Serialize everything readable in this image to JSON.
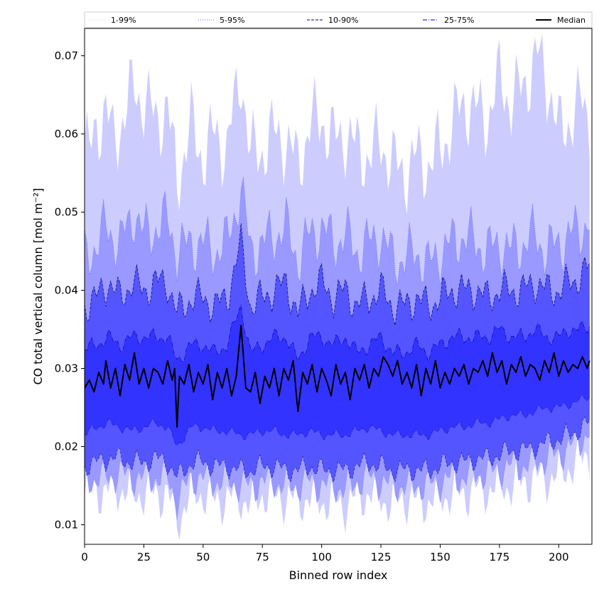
{
  "chart_data": {
    "type": "area",
    "xlabel": "Binned row index",
    "ylabel": "CO total vertical column [mol m⁻²]",
    "xlim": [
      0,
      214
    ],
    "ylim": [
      0.0075,
      0.0735
    ],
    "x_ticks": [
      0,
      25,
      50,
      75,
      100,
      125,
      150,
      175,
      200
    ],
    "y_ticks": [
      0.01,
      0.02,
      0.03,
      0.04,
      0.05,
      0.06,
      0.07
    ],
    "x_tick_labels": [
      "0",
      "25",
      "50",
      "75",
      "100",
      "125",
      "150",
      "175",
      "200"
    ],
    "y_tick_labels": [
      "0.01",
      "0.02",
      "0.03",
      "0.04",
      "0.05",
      "0.06",
      "0.07"
    ],
    "grid": false,
    "legend_position": "top",
    "x_start": 0,
    "x_end": 213,
    "series": [
      {
        "name": "1-99%",
        "fill_color": "#ccccff",
        "line_color": "#d8d8ff",
        "line_style": "dotted",
        "keypoints_x": [
          0,
          2,
          5,
          9,
          12,
          15,
          21,
          25,
          30,
          35,
          39,
          45,
          50,
          55,
          60,
          66,
          70,
          75,
          80,
          85,
          90,
          95,
          100,
          105,
          110,
          115,
          120,
          125,
          130,
          135,
          140,
          145,
          150,
          155,
          160,
          165,
          170,
          175,
          180,
          185,
          191,
          196,
          200,
          205,
          210,
          213
        ],
        "keypoints_upper": [
          0.059,
          0.057,
          0.061,
          0.063,
          0.059,
          0.061,
          0.066,
          0.064,
          0.062,
          0.063,
          0.054,
          0.061,
          0.057,
          0.06,
          0.058,
          0.068,
          0.057,
          0.058,
          0.06,
          0.059,
          0.056,
          0.061,
          0.062,
          0.059,
          0.06,
          0.058,
          0.057,
          0.059,
          0.056,
          0.055,
          0.057,
          0.056,
          0.058,
          0.061,
          0.064,
          0.063,
          0.062,
          0.067,
          0.064,
          0.066,
          0.07,
          0.066,
          0.06,
          0.062,
          0.064,
          0.062
        ],
        "keypoints_lower": [
          0.0135,
          0.014,
          0.0145,
          0.014,
          0.015,
          0.0145,
          0.014,
          0.014,
          0.014,
          0.014,
          0.0105,
          0.014,
          0.014,
          0.013,
          0.0135,
          0.0135,
          0.0125,
          0.014,
          0.0135,
          0.0135,
          0.013,
          0.0135,
          0.013,
          0.013,
          0.0125,
          0.0135,
          0.014,
          0.0135,
          0.0125,
          0.0135,
          0.013,
          0.013,
          0.0135,
          0.014,
          0.014,
          0.0145,
          0.0145,
          0.015,
          0.015,
          0.0155,
          0.016,
          0.016,
          0.0165,
          0.0175,
          0.0185,
          0.019
        ]
      },
      {
        "name": "5-95%",
        "fill_color": "#9999ff",
        "line_color": "#6060ff",
        "line_style": "dotted",
        "keypoints_x": [
          0,
          5,
          9,
          15,
          21,
          25,
          30,
          35,
          39,
          45,
          50,
          55,
          60,
          66,
          70,
          75,
          80,
          85,
          90,
          95,
          100,
          105,
          110,
          115,
          120,
          125,
          130,
          135,
          140,
          145,
          150,
          155,
          160,
          165,
          170,
          175,
          180,
          185,
          190,
          195,
          200,
          205,
          210,
          213
        ],
        "keypoints_upper": [
          0.044,
          0.046,
          0.048,
          0.046,
          0.05,
          0.047,
          0.048,
          0.049,
          0.045,
          0.046,
          0.046,
          0.045,
          0.046,
          0.053,
          0.045,
          0.046,
          0.047,
          0.048,
          0.044,
          0.047,
          0.048,
          0.046,
          0.047,
          0.045,
          0.046,
          0.047,
          0.044,
          0.044,
          0.045,
          0.043,
          0.045,
          0.046,
          0.047,
          0.046,
          0.045,
          0.046,
          0.045,
          0.046,
          0.047,
          0.045,
          0.046,
          0.047,
          0.048,
          0.049
        ],
        "keypoints_lower": [
          0.0155,
          0.016,
          0.016,
          0.0165,
          0.016,
          0.016,
          0.016,
          0.016,
          0.013,
          0.016,
          0.016,
          0.0155,
          0.0155,
          0.015,
          0.015,
          0.0155,
          0.0155,
          0.015,
          0.015,
          0.0155,
          0.015,
          0.015,
          0.0145,
          0.0155,
          0.016,
          0.0155,
          0.015,
          0.015,
          0.015,
          0.015,
          0.0155,
          0.016,
          0.016,
          0.0165,
          0.0165,
          0.017,
          0.0175,
          0.0175,
          0.018,
          0.0185,
          0.019,
          0.02,
          0.021,
          0.022
        ]
      },
      {
        "name": "10-90%",
        "fill_color": "#5555ff",
        "line_color": "#000066",
        "line_style": "dashed",
        "keypoints_x": [
          0,
          5,
          10,
          15,
          20,
          25,
          30,
          35,
          39,
          45,
          50,
          55,
          60,
          66,
          70,
          75,
          80,
          85,
          90,
          95,
          100,
          105,
          110,
          115,
          120,
          125,
          130,
          135,
          140,
          145,
          150,
          155,
          160,
          165,
          170,
          175,
          180,
          185,
          190,
          195,
          200,
          205,
          210,
          213
        ],
        "keypoints_upper": [
          0.038,
          0.039,
          0.041,
          0.039,
          0.041,
          0.04,
          0.041,
          0.041,
          0.037,
          0.039,
          0.039,
          0.038,
          0.039,
          0.046,
          0.038,
          0.039,
          0.04,
          0.041,
          0.037,
          0.04,
          0.041,
          0.039,
          0.04,
          0.038,
          0.039,
          0.04,
          0.038,
          0.038,
          0.039,
          0.038,
          0.039,
          0.04,
          0.04,
          0.04,
          0.039,
          0.04,
          0.04,
          0.04,
          0.041,
          0.04,
          0.04,
          0.041,
          0.042,
          0.043
        ],
        "keypoints_lower": [
          0.0175,
          0.018,
          0.0185,
          0.0185,
          0.018,
          0.018,
          0.0185,
          0.018,
          0.016,
          0.018,
          0.018,
          0.0175,
          0.0175,
          0.017,
          0.017,
          0.0175,
          0.0175,
          0.017,
          0.017,
          0.0175,
          0.017,
          0.017,
          0.017,
          0.0175,
          0.018,
          0.0175,
          0.017,
          0.017,
          0.017,
          0.017,
          0.0175,
          0.018,
          0.018,
          0.0185,
          0.0185,
          0.019,
          0.0195,
          0.0195,
          0.02,
          0.0205,
          0.021,
          0.0215,
          0.0225,
          0.023
        ]
      },
      {
        "name": "25-75%",
        "fill_color": "#3333ff",
        "line_color": "#0000aa",
        "line_style": "dashdot",
        "keypoints_x": [
          0,
          5,
          10,
          15,
          20,
          25,
          30,
          35,
          39,
          45,
          50,
          55,
          60,
          66,
          70,
          75,
          80,
          85,
          90,
          95,
          100,
          105,
          110,
          115,
          120,
          125,
          130,
          135,
          140,
          145,
          150,
          155,
          160,
          165,
          170,
          175,
          180,
          185,
          190,
          195,
          200,
          205,
          210,
          213
        ],
        "keypoints_upper": [
          0.0325,
          0.033,
          0.034,
          0.033,
          0.034,
          0.034,
          0.034,
          0.034,
          0.031,
          0.033,
          0.033,
          0.032,
          0.033,
          0.038,
          0.032,
          0.033,
          0.034,
          0.034,
          0.031,
          0.034,
          0.034,
          0.033,
          0.034,
          0.032,
          0.033,
          0.034,
          0.032,
          0.032,
          0.033,
          0.032,
          0.033,
          0.034,
          0.034,
          0.034,
          0.034,
          0.035,
          0.034,
          0.034,
          0.035,
          0.034,
          0.034,
          0.035,
          0.035,
          0.0355
        ],
        "keypoints_lower": [
          0.0215,
          0.0225,
          0.023,
          0.0225,
          0.022,
          0.0225,
          0.023,
          0.0225,
          0.02,
          0.0225,
          0.0225,
          0.022,
          0.022,
          0.0215,
          0.0215,
          0.022,
          0.022,
          0.0215,
          0.0215,
          0.022,
          0.0215,
          0.0215,
          0.0215,
          0.022,
          0.0225,
          0.022,
          0.0215,
          0.0215,
          0.0215,
          0.0215,
          0.022,
          0.0225,
          0.0225,
          0.023,
          0.023,
          0.0235,
          0.024,
          0.024,
          0.0245,
          0.025,
          0.025,
          0.0255,
          0.026,
          0.0265
        ]
      },
      {
        "name": "Median",
        "line_color": "#000000",
        "line_style": "solid",
        "x": [
          0,
          2,
          4,
          6,
          8,
          9,
          11,
          13,
          15,
          17,
          19,
          21,
          23,
          25,
          27,
          29,
          31,
          33,
          35,
          37,
          38,
          39,
          40,
          42,
          44,
          46,
          48,
          50,
          52,
          54,
          56,
          58,
          60,
          62,
          64,
          66,
          68,
          70,
          72,
          74,
          76,
          78,
          80,
          82,
          84,
          86,
          88,
          90,
          92,
          94,
          96,
          98,
          100,
          102,
          104,
          106,
          108,
          110,
          112,
          114,
          116,
          118,
          120,
          122,
          124,
          126,
          128,
          130,
          132,
          134,
          136,
          138,
          140,
          142,
          144,
          146,
          148,
          150,
          152,
          154,
          156,
          158,
          160,
          162,
          164,
          166,
          168,
          170,
          172,
          174,
          176,
          178,
          180,
          182,
          184,
          186,
          188,
          190,
          192,
          194,
          196,
          198,
          200,
          202,
          204,
          206,
          208,
          210,
          212,
          213
        ],
        "values": [
          0.0275,
          0.0285,
          0.027,
          0.0295,
          0.028,
          0.031,
          0.0275,
          0.03,
          0.0265,
          0.0305,
          0.0285,
          0.032,
          0.028,
          0.03,
          0.0275,
          0.03,
          0.0295,
          0.028,
          0.031,
          0.0285,
          0.03,
          0.0225,
          0.029,
          0.028,
          0.0305,
          0.027,
          0.0295,
          0.028,
          0.0305,
          0.026,
          0.0295,
          0.0275,
          0.03,
          0.0265,
          0.029,
          0.0355,
          0.0275,
          0.027,
          0.0295,
          0.0255,
          0.029,
          0.0275,
          0.03,
          0.0265,
          0.03,
          0.0285,
          0.031,
          0.0245,
          0.0295,
          0.028,
          0.0305,
          0.027,
          0.03,
          0.0285,
          0.0265,
          0.0305,
          0.028,
          0.0295,
          0.026,
          0.03,
          0.0285,
          0.0305,
          0.0275,
          0.03,
          0.029,
          0.0315,
          0.0305,
          0.029,
          0.031,
          0.028,
          0.0295,
          0.0275,
          0.0305,
          0.0265,
          0.03,
          0.028,
          0.031,
          0.0275,
          0.0295,
          0.028,
          0.03,
          0.029,
          0.0305,
          0.028,
          0.03,
          0.0295,
          0.031,
          0.029,
          0.032,
          0.0295,
          0.031,
          0.028,
          0.0305,
          0.0295,
          0.0315,
          0.029,
          0.0305,
          0.03,
          0.0285,
          0.031,
          0.0295,
          0.032,
          0.029,
          0.031,
          0.0295,
          0.0305,
          0.03,
          0.0315,
          0.03,
          0.031
        ]
      }
    ]
  }
}
